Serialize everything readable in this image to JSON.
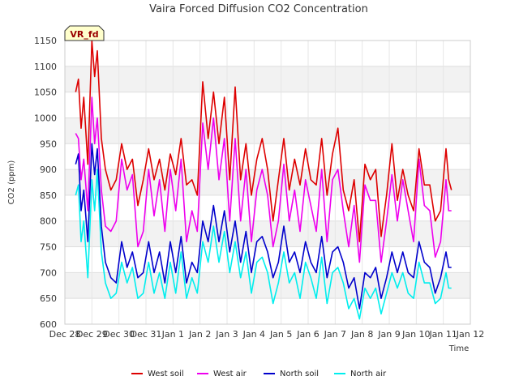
{
  "chart_data": {
    "type": "line",
    "title": "Vaira Forced Diffusion CO2 Concentration",
    "xlabel": "Time",
    "ylabel": "CO2 (ppm)",
    "badge": "VR_fd",
    "ylim": [
      600,
      1150
    ],
    "yticks": [
      600,
      650,
      700,
      750,
      800,
      850,
      900,
      950,
      1000,
      1050,
      1100,
      1150
    ],
    "xlim": [
      0,
      15
    ],
    "xticks": [
      {
        "x": 0,
        "label": "Dec 28"
      },
      {
        "x": 1,
        "label": "Dec 29"
      },
      {
        "x": 2,
        "label": "Dec 30"
      },
      {
        "x": 3,
        "label": "Dec 31"
      },
      {
        "x": 4,
        "label": "Jan 1"
      },
      {
        "x": 5,
        "label": "Jan 2"
      },
      {
        "x": 6,
        "label": "Jan 3"
      },
      {
        "x": 7,
        "label": "Jan 4"
      },
      {
        "x": 8,
        "label": "Jan 5"
      },
      {
        "x": 9,
        "label": "Jan 6"
      },
      {
        "x": 10,
        "label": "Jan 7"
      },
      {
        "x": 11,
        "label": "Jan 8"
      },
      {
        "x": 12,
        "label": "Jan 9"
      },
      {
        "x": 13,
        "label": "Jan 10"
      },
      {
        "x": 14,
        "label": "Jan 11"
      },
      {
        "x": 15,
        "label": "Jan 12"
      }
    ],
    "grid": true,
    "legend_position": "bottom",
    "series": [
      {
        "name": "West soil",
        "color": "#dd0000",
        "x": [
          0.4,
          0.5,
          0.6,
          0.7,
          0.85,
          1.0,
          1.1,
          1.2,
          1.35,
          1.5,
          1.7,
          1.9,
          2.1,
          2.3,
          2.5,
          2.7,
          2.9,
          3.1,
          3.3,
          3.5,
          3.7,
          3.9,
          4.1,
          4.3,
          4.5,
          4.7,
          4.9,
          5.1,
          5.3,
          5.5,
          5.7,
          5.9,
          6.1,
          6.3,
          6.5,
          6.7,
          6.9,
          7.1,
          7.3,
          7.5,
          7.7,
          7.9,
          8.1,
          8.3,
          8.5,
          8.7,
          8.9,
          9.1,
          9.3,
          9.5,
          9.7,
          9.9,
          10.1,
          10.3,
          10.5,
          10.7,
          10.9,
          11.1,
          11.3,
          11.5,
          11.7,
          11.9,
          12.1,
          12.3,
          12.5,
          12.7,
          12.9,
          13.1,
          13.3,
          13.5,
          13.7,
          13.9,
          14.1,
          14.2,
          14.3
        ],
        "y": [
          1050,
          1075,
          980,
          1040,
          910,
          1150,
          1080,
          1130,
          960,
          900,
          860,
          880,
          950,
          900,
          920,
          830,
          880,
          940,
          880,
          920,
          860,
          930,
          890,
          960,
          870,
          880,
          850,
          1070,
          960,
          1050,
          950,
          1040,
          880,
          1060,
          880,
          950,
          850,
          920,
          960,
          900,
          800,
          880,
          960,
          860,
          920,
          870,
          940,
          880,
          870,
          960,
          850,
          930,
          980,
          860,
          820,
          880,
          760,
          910,
          880,
          900,
          770,
          850,
          950,
          840,
          900,
          850,
          820,
          940,
          870,
          870,
          800,
          820,
          940,
          880,
          860
        ]
      },
      {
        "name": "West air",
        "color": "#ee00ee",
        "x": [
          0.4,
          0.5,
          0.6,
          0.7,
          0.85,
          1.0,
          1.1,
          1.2,
          1.35,
          1.5,
          1.7,
          1.9,
          2.1,
          2.3,
          2.5,
          2.7,
          2.9,
          3.1,
          3.3,
          3.5,
          3.7,
          3.9,
          4.1,
          4.3,
          4.5,
          4.7,
          4.9,
          5.1,
          5.3,
          5.5,
          5.7,
          5.9,
          6.1,
          6.3,
          6.5,
          6.7,
          6.9,
          7.1,
          7.3,
          7.5,
          7.7,
          7.9,
          8.1,
          8.3,
          8.5,
          8.7,
          8.9,
          9.1,
          9.3,
          9.5,
          9.7,
          9.9,
          10.1,
          10.3,
          10.5,
          10.7,
          10.9,
          11.1,
          11.3,
          11.5,
          11.7,
          11.9,
          12.1,
          12.3,
          12.5,
          12.7,
          12.9,
          13.1,
          13.3,
          13.5,
          13.7,
          13.9,
          14.1,
          14.2,
          14.3
        ],
        "y": [
          970,
          960,
          880,
          920,
          820,
          1040,
          950,
          1000,
          860,
          790,
          780,
          800,
          920,
          860,
          890,
          750,
          780,
          900,
          810,
          880,
          780,
          900,
          820,
          920,
          760,
          820,
          780,
          990,
          900,
          1000,
          880,
          960,
          800,
          960,
          800,
          900,
          760,
          860,
          900,
          850,
          750,
          800,
          910,
          800,
          860,
          780,
          880,
          830,
          780,
          900,
          760,
          880,
          900,
          820,
          750,
          830,
          720,
          870,
          840,
          840,
          720,
          800,
          890,
          800,
          880,
          820,
          760,
          920,
          830,
          820,
          730,
          760,
          880,
          820,
          820
        ]
      },
      {
        "name": "North soil",
        "color": "#0000cc",
        "x": [
          0.4,
          0.5,
          0.6,
          0.7,
          0.85,
          1.0,
          1.1,
          1.2,
          1.35,
          1.5,
          1.7,
          1.9,
          2.1,
          2.3,
          2.5,
          2.7,
          2.9,
          3.1,
          3.3,
          3.5,
          3.7,
          3.9,
          4.1,
          4.3,
          4.5,
          4.7,
          4.9,
          5.1,
          5.3,
          5.5,
          5.7,
          5.9,
          6.1,
          6.3,
          6.5,
          6.7,
          6.9,
          7.1,
          7.3,
          7.5,
          7.7,
          7.9,
          8.1,
          8.3,
          8.5,
          8.7,
          8.9,
          9.1,
          9.3,
          9.5,
          9.7,
          9.9,
          10.1,
          10.3,
          10.5,
          10.7,
          10.9,
          11.1,
          11.3,
          11.5,
          11.7,
          11.9,
          12.1,
          12.3,
          12.5,
          12.7,
          12.9,
          13.1,
          13.3,
          13.5,
          13.7,
          13.9,
          14.1,
          14.2,
          14.3
        ],
        "y": [
          910,
          930,
          820,
          860,
          760,
          950,
          890,
          940,
          790,
          720,
          690,
          680,
          760,
          710,
          740,
          690,
          700,
          760,
          700,
          740,
          680,
          760,
          700,
          770,
          680,
          720,
          700,
          800,
          760,
          830,
          760,
          820,
          740,
          800,
          720,
          780,
          700,
          760,
          770,
          740,
          690,
          720,
          790,
          720,
          740,
          700,
          760,
          720,
          700,
          770,
          690,
          740,
          750,
          720,
          670,
          690,
          630,
          700,
          690,
          710,
          650,
          690,
          740,
          700,
          740,
          700,
          690,
          760,
          720,
          710,
          660,
          690,
          740,
          710,
          710
        ]
      },
      {
        "name": "North air",
        "color": "#00eeee",
        "x": [
          0.4,
          0.5,
          0.6,
          0.7,
          0.85,
          1.0,
          1.1,
          1.2,
          1.35,
          1.5,
          1.7,
          1.9,
          2.1,
          2.3,
          2.5,
          2.7,
          2.9,
          3.1,
          3.3,
          3.5,
          3.7,
          3.9,
          4.1,
          4.3,
          4.5,
          4.7,
          4.9,
          5.1,
          5.3,
          5.5,
          5.7,
          5.9,
          6.1,
          6.3,
          6.5,
          6.7,
          6.9,
          7.1,
          7.3,
          7.5,
          7.7,
          7.9,
          8.1,
          8.3,
          8.5,
          8.7,
          8.9,
          9.1,
          9.3,
          9.5,
          9.7,
          9.9,
          10.1,
          10.3,
          10.5,
          10.7,
          10.9,
          11.1,
          11.3,
          11.5,
          11.7,
          11.9,
          12.1,
          12.3,
          12.5,
          12.7,
          12.9,
          13.1,
          13.3,
          13.5,
          13.7,
          13.9,
          14.1,
          14.2,
          14.3
        ],
        "y": [
          850,
          870,
          760,
          800,
          690,
          880,
          820,
          900,
          740,
          680,
          650,
          660,
          720,
          680,
          710,
          650,
          660,
          720,
          660,
          700,
          650,
          720,
          660,
          740,
          650,
          690,
          660,
          760,
          720,
          790,
          720,
          780,
          700,
          760,
          690,
          740,
          660,
          720,
          730,
          700,
          640,
          680,
          740,
          680,
          700,
          650,
          720,
          690,
          650,
          730,
          640,
          700,
          710,
          680,
          630,
          650,
          610,
          670,
          650,
          670,
          620,
          660,
          700,
          670,
          700,
          660,
          650,
          720,
          680,
          680,
          640,
          650,
          700,
          670,
          670
        ]
      }
    ]
  }
}
